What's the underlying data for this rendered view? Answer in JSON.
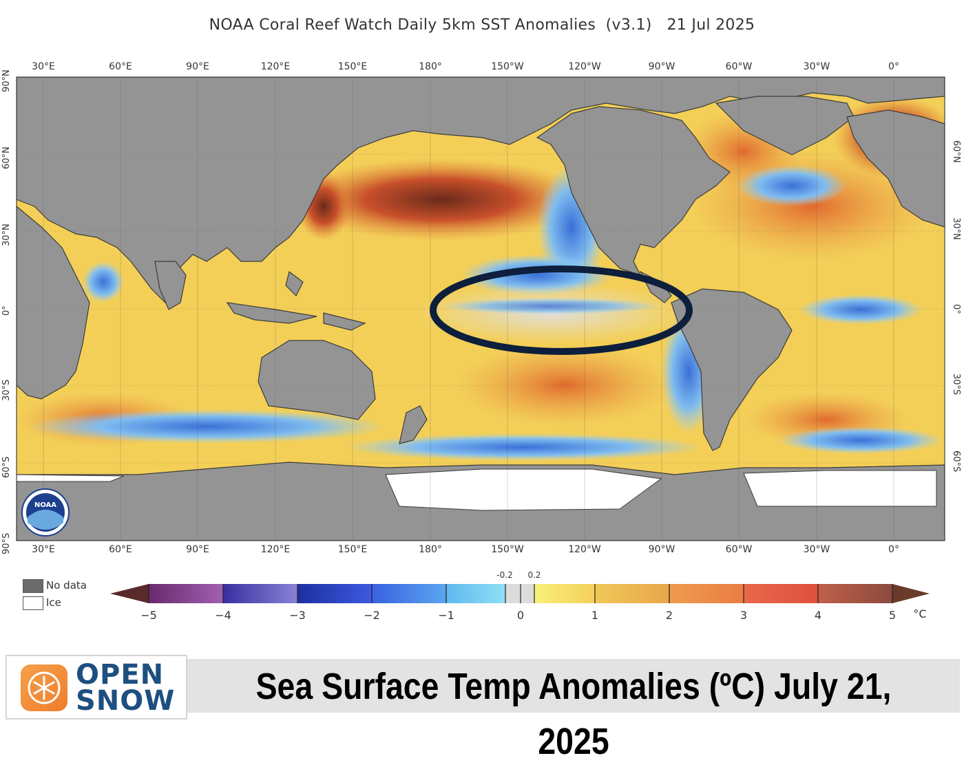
{
  "header": {
    "title": "NOAA Coral Reef Watch Daily 5km SST Anomalies  (v3.1)   21 Jul 2025"
  },
  "map": {
    "longitude_labels": [
      "30°E",
      "60°E",
      "90°E",
      "120°E",
      "150°E",
      "180°",
      "150°W",
      "120°W",
      "90°W",
      "60°W",
      "30°W",
      "0°"
    ],
    "latitude_labels_left": [
      "90°N",
      "60°N",
      "30°N",
      "0°",
      "30°S",
      "60°S",
      "90°S"
    ],
    "latitude_labels_right": [
      "60°N",
      "30°N",
      "0°",
      "30°S",
      "60°S"
    ],
    "highlight": "equatorial-pacific-ellipse",
    "colors": {
      "land": "#949494",
      "ice": "#ffffff",
      "warm": "#f2c94c",
      "hot": "#c8502a",
      "cool": "#6fb6ee",
      "neutral": "#dcdcdc"
    }
  },
  "legend": {
    "no_data": "No data",
    "ice": "Ice",
    "colorbar_ticks": [
      "−5",
      "−4",
      "−3",
      "−2",
      "−1",
      "0",
      "1",
      "2",
      "3",
      "4",
      "5"
    ],
    "small_ticks": [
      "-0.2",
      "0.2"
    ],
    "unit": "°C"
  },
  "footer": {
    "logo_line1": "OPEN",
    "logo_line2": "SNOW",
    "banner": "Sea Surface Temp Anomalies (ºC) July 21, 2025"
  }
}
